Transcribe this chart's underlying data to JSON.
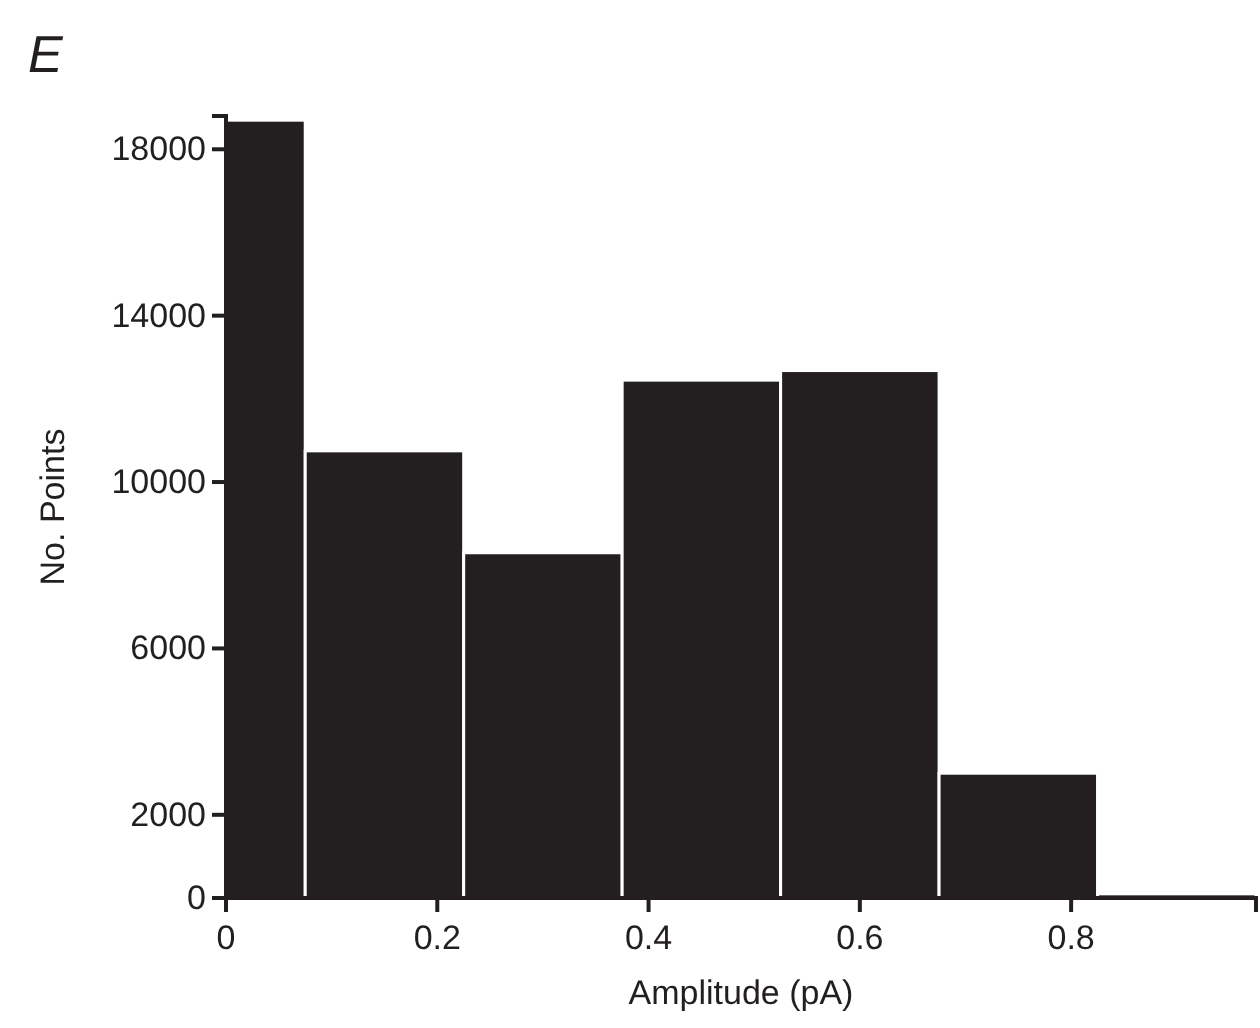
{
  "chart_data": {
    "type": "histogram",
    "title": "E",
    "xlabel": "Amplitude (pA)",
    "ylabel": "No. Points",
    "bins": [
      0,
      0.075,
      0.225,
      0.375,
      0.525,
      0.675,
      0.825,
      0.975
    ],
    "values": [
      18700,
      10750,
      8300,
      12450,
      12680,
      3000,
      100
    ],
    "color": "#231f20",
    "xlim": [
      0,
      0.975
    ],
    "xticks": [
      0,
      0.2,
      0.4,
      0.6,
      0.8
    ],
    "ylim": [
      0,
      18800
    ],
    "yticks": [
      0,
      2000,
      6000,
      10000,
      14000,
      18000
    ],
    "grid": false
  }
}
